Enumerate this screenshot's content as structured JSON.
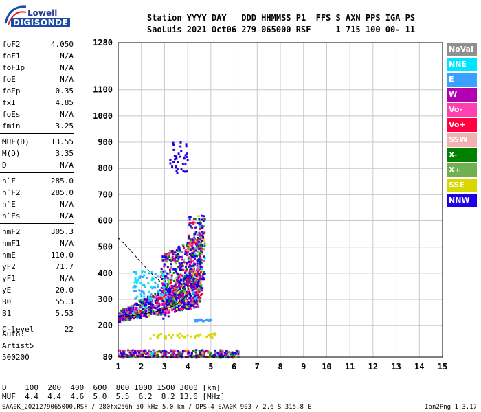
{
  "logo": {
    "line1": "Lowell",
    "line2": "DIGISONDE"
  },
  "header": {
    "line1": "Station YYYY DAY   DDD HHMMSS P1  FFS S AXN PPS IGA PS",
    "line2": "SaoLuis 2021 Oct06 279 065000 RSF     1 715 100 00- 11"
  },
  "params": [
    [
      {
        "name": "foF2",
        "value": "4.050"
      },
      {
        "name": "foF1",
        "value": "N/A"
      },
      {
        "name": "foF1p",
        "value": "N/A"
      },
      {
        "name": "foE",
        "value": "N/A"
      },
      {
        "name": "foEp",
        "value": "0.35"
      },
      {
        "name": "fxI",
        "value": "4.85"
      },
      {
        "name": "foEs",
        "value": "N/A"
      },
      {
        "name": "fmin",
        "value": "3.25"
      }
    ],
    [
      {
        "name": "MUF(D)",
        "value": "13.55"
      },
      {
        "name": "M(D)",
        "value": "3.35"
      },
      {
        "name": "D",
        "value": "N/A"
      }
    ],
    [
      {
        "name": "h`F",
        "value": "285.0"
      },
      {
        "name": "h`F2",
        "value": "285.0"
      },
      {
        "name": "h`E",
        "value": "N/A"
      },
      {
        "name": "h`Es",
        "value": "N/A"
      }
    ],
    [
      {
        "name": "hmF2",
        "value": "305.3"
      },
      {
        "name": "hmF1",
        "value": "N/A"
      },
      {
        "name": "hmE",
        "value": "110.0"
      },
      {
        "name": "yF2",
        "value": "71.7"
      },
      {
        "name": "yF1",
        "value": "N/A"
      },
      {
        "name": "yE",
        "value": "20.0"
      },
      {
        "name": "B0",
        "value": "55.3"
      },
      {
        "name": "B1",
        "value": "5.53"
      }
    ],
    [
      {
        "name": "C-level",
        "value": "22"
      }
    ]
  ],
  "auto": {
    "line1": "Auto:",
    "line2": "Artist5",
    "line3": "500200"
  },
  "legend": [
    {
      "label": "NoVal",
      "color": "#909090"
    },
    {
      "label": "NNE",
      "color": "#00e5ff"
    },
    {
      "label": "E",
      "color": "#3aa0ff"
    },
    {
      "label": "W",
      "color": "#b000b0"
    },
    {
      "label": "Vo-",
      "color": "#ff40b0"
    },
    {
      "label": "Vo+",
      "color": "#ff0040"
    },
    {
      "label": "SSW",
      "color": "#f4b0b0"
    },
    {
      "label": "X-",
      "color": "#008000"
    },
    {
      "label": "X+",
      "color": "#70b050"
    },
    {
      "label": "SSE",
      "color": "#d8d800"
    },
    {
      "label": "NNW",
      "color": "#2000e0"
    }
  ],
  "muf_table": {
    "line1": "D    100  200  400  600  800 1000 1500 3000 [km]",
    "line2": "MUF  4.4  4.4  4.6  5.0  5.5  6.2  8.2 13.6 [MHz]"
  },
  "footer": {
    "left": "SAA0K_2021279065000.RSF / 280fx256h 50 kHz 5.0 km / DPS-4 SAA0K 903 / 2.6 S 315.8 E",
    "right": "Ion2Png 1.3.17"
  },
  "chart_data": {
    "type": "scatter",
    "title": "",
    "xlabel": "",
    "ylabel": "",
    "xlim": [
      1,
      15
    ],
    "ylim": [
      80,
      1280
    ],
    "x_ticks": [
      1,
      2,
      3,
      4,
      5,
      6,
      7,
      8,
      9,
      10,
      11,
      12,
      13,
      14,
      15
    ],
    "y_ticks": [
      80,
      200,
      300,
      400,
      500,
      600,
      700,
      800,
      900,
      1000,
      1100,
      1280
    ],
    "grid": true,
    "trace_curve": {
      "x": [
        1.0,
        1.4,
        1.8,
        2.2,
        2.6,
        3.0,
        3.4,
        3.8,
        4.1
      ],
      "y": [
        232,
        236,
        240,
        246,
        253,
        262,
        275,
        300,
        330
      ]
    },
    "dashed_curve": {
      "x": [
        1.0,
        1.4,
        1.8,
        2.2,
        2.6,
        2.9
      ],
      "y": [
        535,
        500,
        460,
        420,
        385,
        362
      ]
    }
  }
}
